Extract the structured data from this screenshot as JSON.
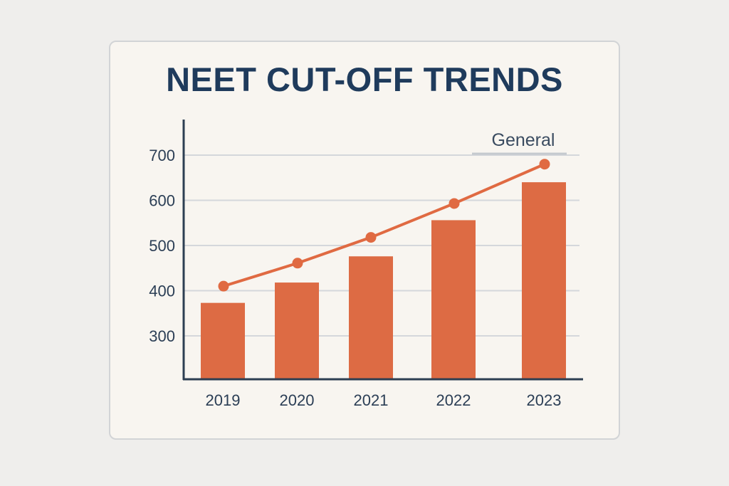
{
  "chart_data": {
    "type": "bar",
    "title": "NEET CUT-OFF TRENDS",
    "categories": [
      "2019",
      "2020",
      "2021",
      "2022",
      "2023"
    ],
    "series": [
      {
        "type": "bar",
        "values": [
          373,
          418,
          476,
          556,
          640
        ]
      },
      {
        "type": "line",
        "name": "General",
        "values": [
          410,
          461,
          518,
          593,
          680
        ]
      }
    ],
    "yticks": [
      300,
      400,
      500,
      600,
      700
    ],
    "ylim": [
      210,
      780
    ],
    "grid": true,
    "legend": "top-right",
    "colors": {
      "bar": "#dd6b44",
      "line": "#e06a42",
      "axis": "#2d3e52",
      "grid": "#d4d7db",
      "title": "#1f3b5c"
    }
  }
}
